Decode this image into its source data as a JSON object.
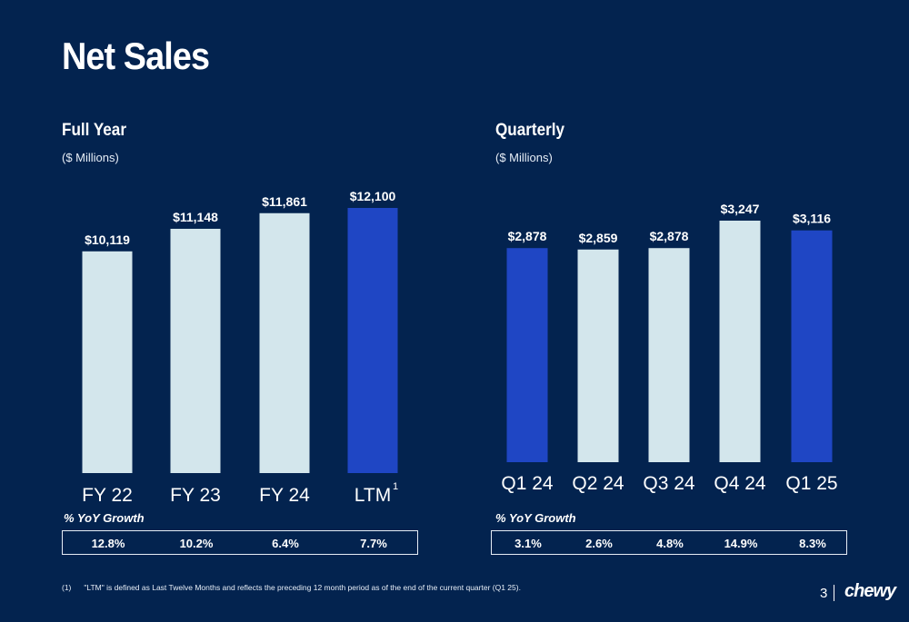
{
  "page": {
    "title": "Net Sales",
    "page_number": "3",
    "logo_text": "chewy"
  },
  "colors": {
    "background": "#03234f",
    "bar_light": "#d3e6ec",
    "bar_accent": "#1f46c4"
  },
  "full_year": {
    "title": "Full Year",
    "subtitle": "($ Millions)",
    "growth_title": "% YoY Growth",
    "growth": [
      "12.8%",
      "10.2%",
      "6.4%",
      "7.7%"
    ]
  },
  "quarterly": {
    "title": "Quarterly",
    "subtitle": "($ Millions)",
    "growth_title": "% YoY Growth",
    "growth": [
      "3.1%",
      "2.6%",
      "4.8%",
      "14.9%",
      "8.3%"
    ]
  },
  "chart_data": [
    {
      "type": "bar",
      "title": "Full Year",
      "ylabel": "($ Millions)",
      "categories": [
        "FY 22",
        "FY 23",
        "FY 24",
        "LTM"
      ],
      "category_superscripts": [
        "",
        "",
        "",
        "1"
      ],
      "values": [
        10119,
        11148,
        11861,
        12100
      ],
      "value_labels": [
        "$10,119",
        "$11,148",
        "$11,861",
        "$12,100"
      ],
      "highlight": [
        false,
        false,
        false,
        true
      ]
    },
    {
      "type": "bar",
      "title": "Quarterly",
      "ylabel": "($ Millions)",
      "categories": [
        "Q1 24",
        "Q2 24",
        "Q3 24",
        "Q4 24",
        "Q1 25"
      ],
      "values": [
        2878,
        2859,
        2878,
        3247,
        3116
      ],
      "value_labels": [
        "$2,878",
        "$2,859",
        "$2,878",
        "$3,247",
        "$3,116"
      ],
      "highlight": [
        true,
        false,
        false,
        false,
        true
      ]
    }
  ],
  "footnote": {
    "number": "(1)",
    "text": "\"LTM\" is defined as Last Twelve Months and reflects the preceding 12 month period as of the end of the current quarter (Q1 25)."
  }
}
